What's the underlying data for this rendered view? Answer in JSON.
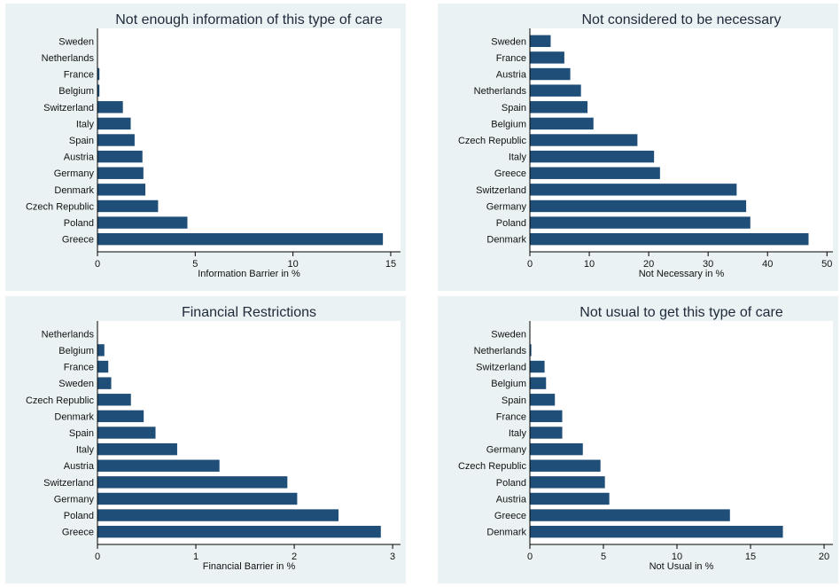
{
  "colors": {
    "bar": "#1f4e79",
    "panel_bg": "#eaf2f3",
    "plot_bg": "#ffffff"
  },
  "chart_data": [
    {
      "type": "bar",
      "orientation": "horizontal",
      "title": "Not enough information of this type of care",
      "xlabel": "Information Barrier in %",
      "xlim": [
        0,
        15.5
      ],
      "xticks": [
        0,
        5,
        10,
        15
      ],
      "categories": [
        "Sweden",
        "Netherlands",
        "France",
        "Belgium",
        "Switzerland",
        "Italy",
        "Spain",
        "Austria",
        "Germany",
        "Denmark",
        "Czech Republic",
        "Poland",
        "Greece"
      ],
      "values": [
        0,
        0,
        0.1,
        0.1,
        1.3,
        1.7,
        1.9,
        2.3,
        2.35,
        2.45,
        3.1,
        4.6,
        14.6
      ]
    },
    {
      "type": "bar",
      "orientation": "horizontal",
      "title": "Not considered to be necessary",
      "xlabel": "Not Necessary in %",
      "xlim": [
        0,
        51
      ],
      "xticks": [
        0,
        10,
        20,
        30,
        40,
        50
      ],
      "categories": [
        "Sweden",
        "France",
        "Austria",
        "Netherlands",
        "Spain",
        "Belgium",
        "Czech Republic",
        "Italy",
        "Greece",
        "Switzerland",
        "Germany",
        "Poland",
        "Denmark"
      ],
      "values": [
        3.5,
        5.8,
        6.8,
        8.6,
        9.7,
        10.7,
        18.1,
        20.9,
        21.9,
        34.8,
        36.4,
        37.1,
        46.9
      ]
    },
    {
      "type": "bar",
      "orientation": "horizontal",
      "title": "Financial Restrictions",
      "xlabel": "Financial Barrier in %",
      "xlim": [
        0,
        3.08
      ],
      "xticks": [
        0,
        1,
        2,
        3
      ],
      "categories": [
        "Netherlands",
        "Belgium",
        "France",
        "Sweden",
        "Czech Republic",
        "Denmark",
        "Spain",
        "Italy",
        "Austria",
        "Switzerland",
        "Germany",
        "Poland",
        "Greece"
      ],
      "values": [
        0,
        0.07,
        0.11,
        0.14,
        0.34,
        0.47,
        0.59,
        0.81,
        1.24,
        1.93,
        2.03,
        2.45,
        2.88
      ]
    },
    {
      "type": "bar",
      "orientation": "horizontal",
      "title": "Not usual to get this type of care",
      "xlabel": "Not Usual in %",
      "xlim": [
        0,
        20.6
      ],
      "xticks": [
        0,
        5,
        10,
        15,
        20
      ],
      "categories": [
        "Sweden",
        "Netherlands",
        "Switzerland",
        "Belgium",
        "Spain",
        "France",
        "Italy",
        "Germany",
        "Czech Republic",
        "Poland",
        "Austria",
        "Greece",
        "Denmark"
      ],
      "values": [
        0,
        0.1,
        1.0,
        1.1,
        1.7,
        2.2,
        2.2,
        3.6,
        4.8,
        5.1,
        5.4,
        13.6,
        17.2
      ]
    }
  ]
}
